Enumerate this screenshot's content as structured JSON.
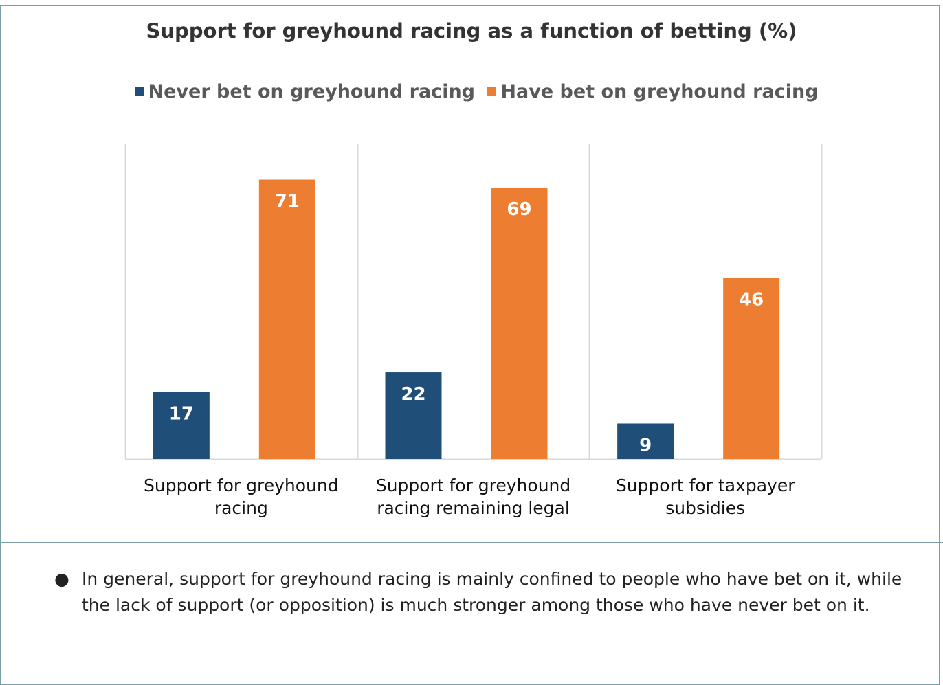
{
  "colors": {
    "never": "#1f4e79",
    "have": "#ed7d31",
    "grid": "#d9d9d9",
    "frame": "#7a9ea7"
  },
  "chart_data": {
    "type": "bar",
    "title": "Support for greyhound racing as a function of betting (%)",
    "categories": [
      [
        "Support for greyhound",
        "racing"
      ],
      [
        "Support for greyhound",
        "racing remaining legal"
      ],
      [
        "Support for taxpayer",
        "subsidies"
      ]
    ],
    "series": [
      {
        "name": "Never bet on greyhound racing",
        "values": [
          17,
          22,
          9
        ]
      },
      {
        "name": "Have bet on greyhound racing",
        "values": [
          71,
          69,
          46
        ]
      }
    ],
    "ylim": [
      0,
      80
    ],
    "legend_position": "top",
    "data_labels": true
  },
  "notes": {
    "bullet_symbol": "●",
    "bullet_text": "In general, support for greyhound racing is mainly confined to people who have bet on it, while the lack of support (or opposition) is much stronger among those who have never bet on it."
  }
}
